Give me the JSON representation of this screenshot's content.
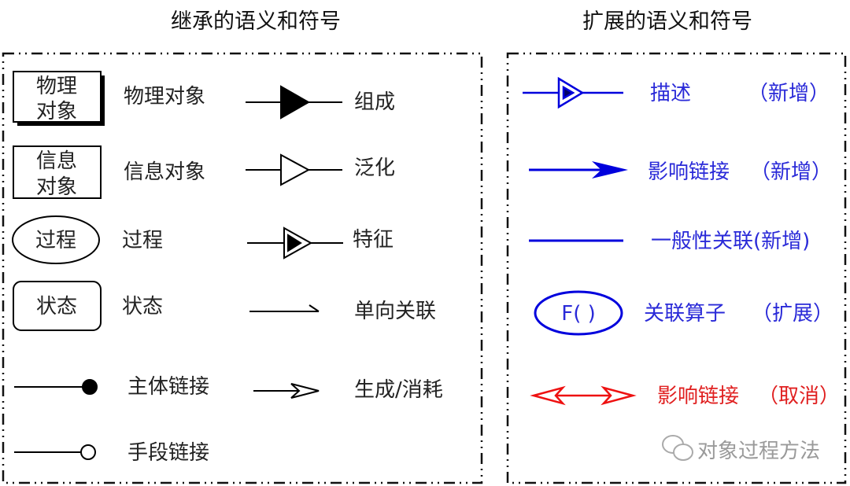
{
  "colors": {
    "inherited": "#000000",
    "extension": "#0000dd",
    "cancelled": "#ee1111",
    "watermark": "#9a9a9a"
  },
  "left_panel": {
    "title": "继承的语义和符号",
    "things": [
      {
        "symbol_line1": "物理",
        "symbol_line2": "对象",
        "label": "物理对象",
        "shape": "rectangle-with-shadow"
      },
      {
        "symbol_line1": "信息",
        "symbol_line2": "对象",
        "label": "信息对象",
        "shape": "rectangle"
      },
      {
        "symbol": "过程",
        "label": "过程",
        "shape": "ellipse"
      },
      {
        "symbol": "状态",
        "label": "状态",
        "shape": "rounded-rectangle"
      }
    ],
    "links": [
      {
        "label": "组成",
        "icon": "filled-triangle-link"
      },
      {
        "label": "泛化",
        "icon": "hollow-triangle-link"
      },
      {
        "label": "特征",
        "icon": "triangle-in-triangle-link"
      },
      {
        "label": "单向关联",
        "icon": "half-arrow-link"
      },
      {
        "label": "主体链接",
        "icon": "filled-circle-link"
      },
      {
        "label": "生成/消耗",
        "icon": "open-arrow-link"
      },
      {
        "label": "手段链接",
        "icon": "hollow-circle-link"
      }
    ]
  },
  "right_panel": {
    "title": "扩展的语义和符号",
    "items": [
      {
        "label": "描述",
        "note": "（新增）",
        "icon": "triangle-in-triangle-link"
      },
      {
        "label": "影响链接",
        "note": "（新增）",
        "icon": "arrow-link"
      },
      {
        "label": "一般性关联(新增)",
        "icon": "plain-line"
      },
      {
        "symbol": "F( )",
        "label": "关联算子",
        "note": "（扩展）",
        "icon": "ellipse"
      },
      {
        "label": "影响链接",
        "note": "（取消）",
        "icon": "double-open-arrow"
      }
    ],
    "watermark": "对象过程方法"
  }
}
